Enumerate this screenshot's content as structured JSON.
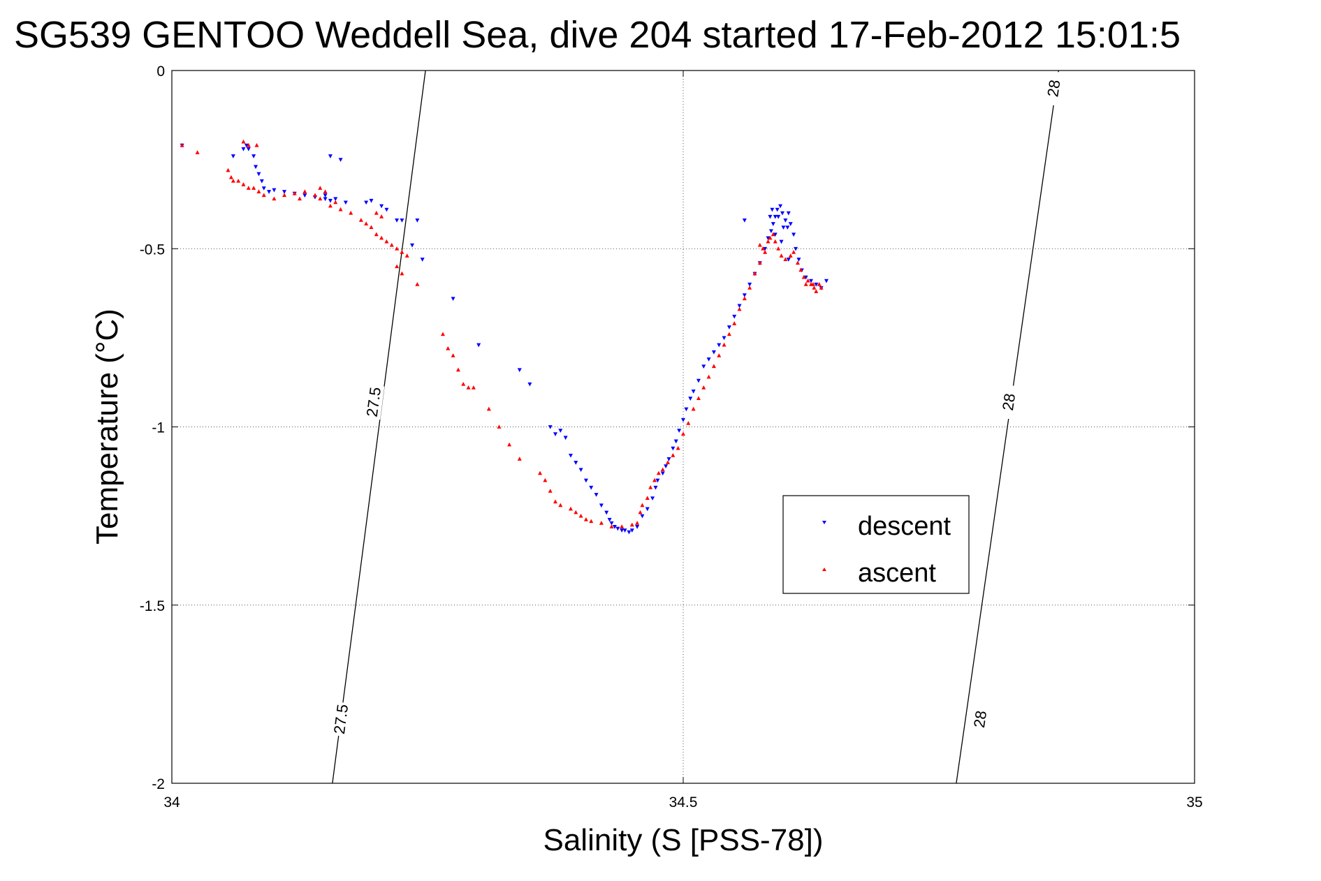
{
  "chart_data": {
    "type": "scatter",
    "title": "SG539 GENTOO Weddell Sea, dive 204 started 17-Feb-2012 15:01:5",
    "xlabel": "Salinity (S [PSS-78])",
    "ylabel": "Temperature (°C)",
    "xlim": [
      34,
      35
    ],
    "ylim": [
      -2,
      0
    ],
    "xticks": [
      34,
      34.5,
      35
    ],
    "xtick_labels": [
      "34",
      "34.5",
      "35"
    ],
    "yticks": [
      0,
      -0.5,
      -1,
      -1.5,
      -2
    ],
    "ytick_labels": [
      "0",
      "-0.5",
      "-1",
      "-1.5",
      "-2"
    ],
    "grid": true,
    "legend_position": "lower-right",
    "series": [
      {
        "name": "descent",
        "color": "#0000ff",
        "marker": "triangle-down",
        "points": [
          [
            34.01,
            -0.21
          ],
          [
            34.06,
            -0.24
          ],
          [
            34.07,
            -0.22
          ],
          [
            34.073,
            -0.21
          ],
          [
            34.075,
            -0.22
          ],
          [
            34.08,
            -0.24
          ],
          [
            34.082,
            -0.27
          ],
          [
            34.085,
            -0.29
          ],
          [
            34.088,
            -0.31
          ],
          [
            34.09,
            -0.33
          ],
          [
            34.095,
            -0.34
          ],
          [
            34.1,
            -0.335
          ],
          [
            34.11,
            -0.34
          ],
          [
            34.12,
            -0.345
          ],
          [
            34.13,
            -0.35
          ],
          [
            34.14,
            -0.355
          ],
          [
            34.15,
            -0.36
          ],
          [
            34.16,
            -0.36
          ],
          [
            34.17,
            -0.37
          ],
          [
            34.15,
            -0.35
          ],
          [
            34.155,
            -0.365
          ],
          [
            34.19,
            -0.37
          ],
          [
            34.195,
            -0.365
          ],
          [
            34.205,
            -0.38
          ],
          [
            34.21,
            -0.39
          ],
          [
            34.22,
            -0.42
          ],
          [
            34.225,
            -0.42
          ],
          [
            34.24,
            -0.42
          ],
          [
            34.155,
            -0.24
          ],
          [
            34.165,
            -0.25
          ],
          [
            34.235,
            -0.49
          ],
          [
            34.245,
            -0.53
          ],
          [
            34.275,
            -0.64
          ],
          [
            34.3,
            -0.77
          ],
          [
            34.34,
            -0.84
          ],
          [
            34.35,
            -0.88
          ],
          [
            34.37,
            -1.0
          ],
          [
            34.375,
            -1.02
          ],
          [
            34.38,
            -1.01
          ],
          [
            34.385,
            -1.03
          ],
          [
            34.39,
            -1.08
          ],
          [
            34.395,
            -1.1
          ],
          [
            34.4,
            -1.12
          ],
          [
            34.405,
            -1.15
          ],
          [
            34.41,
            -1.17
          ],
          [
            34.415,
            -1.19
          ],
          [
            34.42,
            -1.22
          ],
          [
            34.425,
            -1.24
          ],
          [
            34.428,
            -1.26
          ],
          [
            34.43,
            -1.27
          ],
          [
            34.433,
            -1.28
          ],
          [
            34.436,
            -1.285
          ],
          [
            34.44,
            -1.29
          ],
          [
            34.443,
            -1.29
          ],
          [
            34.447,
            -1.295
          ],
          [
            34.45,
            -1.29
          ],
          [
            34.455,
            -1.28
          ],
          [
            34.46,
            -1.25
          ],
          [
            34.465,
            -1.23
          ],
          [
            34.47,
            -1.2
          ],
          [
            34.473,
            -1.17
          ],
          [
            34.475,
            -1.15
          ],
          [
            34.48,
            -1.13
          ],
          [
            34.483,
            -1.11
          ],
          [
            34.486,
            -1.09
          ],
          [
            34.49,
            -1.06
          ],
          [
            34.493,
            -1.04
          ],
          [
            34.496,
            -1.01
          ],
          [
            34.5,
            -0.98
          ],
          [
            34.503,
            -0.95
          ],
          [
            34.507,
            -0.92
          ],
          [
            34.51,
            -0.9
          ],
          [
            34.515,
            -0.87
          ],
          [
            34.52,
            -0.83
          ],
          [
            34.525,
            -0.81
          ],
          [
            34.53,
            -0.79
          ],
          [
            34.535,
            -0.77
          ],
          [
            34.54,
            -0.75
          ],
          [
            34.545,
            -0.72
          ],
          [
            34.55,
            -0.69
          ],
          [
            34.555,
            -0.66
          ],
          [
            34.56,
            -0.63
          ],
          [
            34.565,
            -0.6
          ],
          [
            34.57,
            -0.57
          ],
          [
            34.575,
            -0.54
          ],
          [
            34.58,
            -0.5
          ],
          [
            34.583,
            -0.47
          ],
          [
            34.586,
            -0.45
          ],
          [
            34.588,
            -0.43
          ],
          [
            34.59,
            -0.41
          ],
          [
            34.592,
            -0.39
          ],
          [
            34.595,
            -0.38
          ],
          [
            34.597,
            -0.4
          ],
          [
            34.6,
            -0.42
          ],
          [
            34.602,
            -0.44
          ],
          [
            34.605,
            -0.43
          ],
          [
            34.587,
            -0.39
          ],
          [
            34.593,
            -0.41
          ],
          [
            34.598,
            -0.44
          ],
          [
            34.603,
            -0.4
          ],
          [
            34.59,
            -0.46
          ],
          [
            34.596,
            -0.48
          ],
          [
            34.585,
            -0.41
          ],
          [
            34.56,
            -0.42
          ],
          [
            34.608,
            -0.46
          ],
          [
            34.61,
            -0.5
          ],
          [
            34.613,
            -0.53
          ],
          [
            34.616,
            -0.56
          ],
          [
            34.62,
            -0.58
          ],
          [
            34.625,
            -0.59
          ],
          [
            34.63,
            -0.6
          ],
          [
            34.635,
            -0.61
          ],
          [
            34.64,
            -0.59
          ],
          [
            34.603,
            -0.53
          ]
        ]
      },
      {
        "name": "ascent",
        "color": "#ff0000",
        "marker": "triangle-up",
        "points": [
          [
            34.01,
            -0.21
          ],
          [
            34.025,
            -0.23
          ],
          [
            34.055,
            -0.28
          ],
          [
            34.058,
            -0.3
          ],
          [
            34.06,
            -0.31
          ],
          [
            34.065,
            -0.31
          ],
          [
            34.07,
            -0.32
          ],
          [
            34.075,
            -0.33
          ],
          [
            34.08,
            -0.33
          ],
          [
            34.085,
            -0.34
          ],
          [
            34.09,
            -0.35
          ],
          [
            34.1,
            -0.36
          ],
          [
            34.11,
            -0.35
          ],
          [
            34.12,
            -0.345
          ],
          [
            34.13,
            -0.34
          ],
          [
            34.14,
            -0.35
          ],
          [
            34.145,
            -0.36
          ],
          [
            34.125,
            -0.36
          ],
          [
            34.16,
            -0.37
          ],
          [
            34.145,
            -0.33
          ],
          [
            34.15,
            -0.34
          ],
          [
            34.07,
            -0.2
          ],
          [
            34.075,
            -0.21
          ],
          [
            34.083,
            -0.21
          ],
          [
            34.155,
            -0.38
          ],
          [
            34.165,
            -0.39
          ],
          [
            34.175,
            -0.4
          ],
          [
            34.185,
            -0.42
          ],
          [
            34.19,
            -0.43
          ],
          [
            34.195,
            -0.44
          ],
          [
            34.2,
            -0.46
          ],
          [
            34.205,
            -0.47
          ],
          [
            34.21,
            -0.48
          ],
          [
            34.215,
            -0.49
          ],
          [
            34.22,
            -0.5
          ],
          [
            34.225,
            -0.51
          ],
          [
            34.23,
            -0.52
          ],
          [
            34.2,
            -0.4
          ],
          [
            34.205,
            -0.41
          ],
          [
            34.22,
            -0.55
          ],
          [
            34.225,
            -0.57
          ],
          [
            34.24,
            -0.6
          ],
          [
            34.265,
            -0.74
          ],
          [
            34.27,
            -0.78
          ],
          [
            34.275,
            -0.8
          ],
          [
            34.28,
            -0.84
          ],
          [
            34.285,
            -0.88
          ],
          [
            34.29,
            -0.89
          ],
          [
            34.295,
            -0.89
          ],
          [
            34.31,
            -0.95
          ],
          [
            34.32,
            -1.0
          ],
          [
            34.33,
            -1.05
          ],
          [
            34.34,
            -1.09
          ],
          [
            34.36,
            -1.13
          ],
          [
            34.365,
            -1.15
          ],
          [
            34.37,
            -1.18
          ],
          [
            34.375,
            -1.21
          ],
          [
            34.38,
            -1.22
          ],
          [
            34.39,
            -1.23
          ],
          [
            34.395,
            -1.24
          ],
          [
            34.4,
            -1.25
          ],
          [
            34.405,
            -1.26
          ],
          [
            34.41,
            -1.265
          ],
          [
            34.42,
            -1.27
          ],
          [
            34.43,
            -1.28
          ],
          [
            34.44,
            -1.28
          ],
          [
            34.45,
            -1.275
          ],
          [
            34.455,
            -1.27
          ],
          [
            34.458,
            -1.24
          ],
          [
            34.46,
            -1.22
          ],
          [
            34.465,
            -1.2
          ],
          [
            34.468,
            -1.17
          ],
          [
            34.472,
            -1.15
          ],
          [
            34.476,
            -1.13
          ],
          [
            34.48,
            -1.12
          ],
          [
            34.485,
            -1.1
          ],
          [
            34.49,
            -1.08
          ],
          [
            34.495,
            -1.06
          ],
          [
            34.5,
            -1.02
          ],
          [
            34.505,
            -0.99
          ],
          [
            34.51,
            -0.95
          ],
          [
            34.515,
            -0.92
          ],
          [
            34.52,
            -0.89
          ],
          [
            34.525,
            -0.86
          ],
          [
            34.53,
            -0.83
          ],
          [
            34.535,
            -0.8
          ],
          [
            34.54,
            -0.77
          ],
          [
            34.545,
            -0.74
          ],
          [
            34.55,
            -0.71
          ],
          [
            34.555,
            -0.67
          ],
          [
            34.56,
            -0.64
          ],
          [
            34.565,
            -0.61
          ],
          [
            34.57,
            -0.57
          ],
          [
            34.575,
            -0.54
          ],
          [
            34.58,
            -0.51
          ],
          [
            34.583,
            -0.48
          ],
          [
            34.585,
            -0.47
          ],
          [
            34.588,
            -0.46
          ],
          [
            34.59,
            -0.48
          ],
          [
            34.593,
            -0.5
          ],
          [
            34.596,
            -0.52
          ],
          [
            34.6,
            -0.53
          ],
          [
            34.605,
            -0.52
          ],
          [
            34.608,
            -0.51
          ],
          [
            34.612,
            -0.54
          ],
          [
            34.615,
            -0.56
          ],
          [
            34.618,
            -0.58
          ],
          [
            34.622,
            -0.59
          ],
          [
            34.625,
            -0.6
          ],
          [
            34.628,
            -0.61
          ],
          [
            34.63,
            -0.62
          ],
          [
            34.633,
            -0.6
          ],
          [
            34.635,
            -0.61
          ],
          [
            34.627,
            -0.6
          ],
          [
            34.62,
            -0.6
          ],
          [
            34.575,
            -0.49
          ],
          [
            34.578,
            -0.5
          ]
        ]
      }
    ],
    "contours": [
      {
        "label": "27.5",
        "x_at_ymax": 34.248,
        "x_at_ymin": 34.157,
        "label_positions": [
          [
            34.197,
            -0.93
          ],
          [
            34.165,
            -1.82
          ]
        ]
      },
      {
        "label": "28",
        "x_at_ymax": 34.867,
        "x_at_ymin": 34.767,
        "label_positions": [
          [
            34.862,
            -0.05
          ],
          [
            34.818,
            -0.93
          ],
          [
            34.79,
            -1.82
          ]
        ]
      }
    ]
  }
}
